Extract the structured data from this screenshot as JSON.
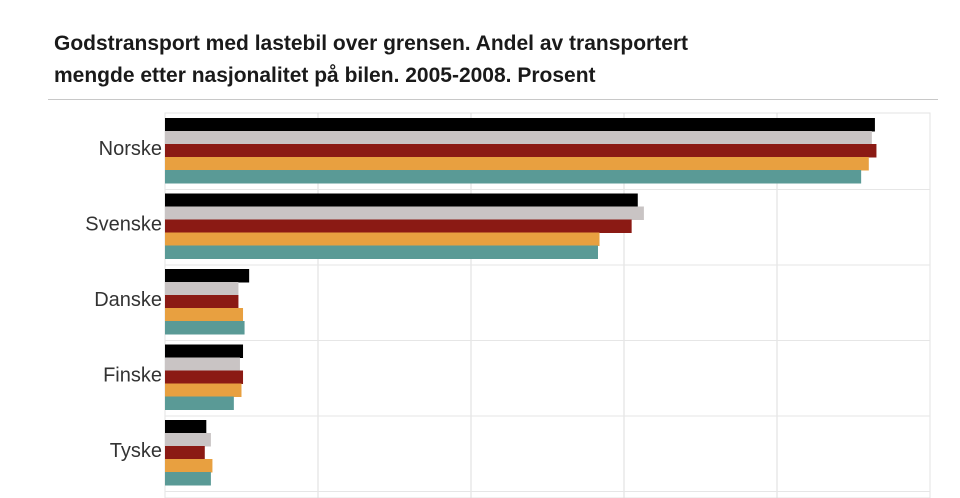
{
  "title_line1": "Godstransport med lastebil over grensen. Andel av transportert",
  "title_line2": "mengde etter nasjonalitet på bilen. 2005-2008. Prosent",
  "chart_data": {
    "type": "bar",
    "orientation": "horizontal",
    "title": "Godstransport med lastebil over grensen. Andel av transportert mengde etter nasjonalitet på bilen. 2005-2008. Prosent",
    "categories": [
      "Norske",
      "Svenske",
      "Danske",
      "Finske",
      "Tyske"
    ],
    "series": [
      {
        "color": "#000000",
        "values": [
          46.4,
          30.9,
          5.5,
          5.1,
          2.7
        ]
      },
      {
        "color": "#c9c4c4",
        "values": [
          46.2,
          31.3,
          4.8,
          4.9,
          3.0
        ]
      },
      {
        "color": "#8b1a14",
        "values": [
          46.5,
          30.5,
          4.8,
          5.1,
          2.6
        ]
      },
      {
        "color": "#e8a040",
        "values": [
          46.0,
          28.4,
          5.1,
          5.0,
          3.1
        ]
      },
      {
        "color": "#5a9a96",
        "values": [
          45.5,
          28.3,
          5.2,
          4.5,
          3.0
        ]
      }
    ],
    "xlim": [
      0,
      50
    ],
    "grid": true,
    "legend": "none"
  }
}
